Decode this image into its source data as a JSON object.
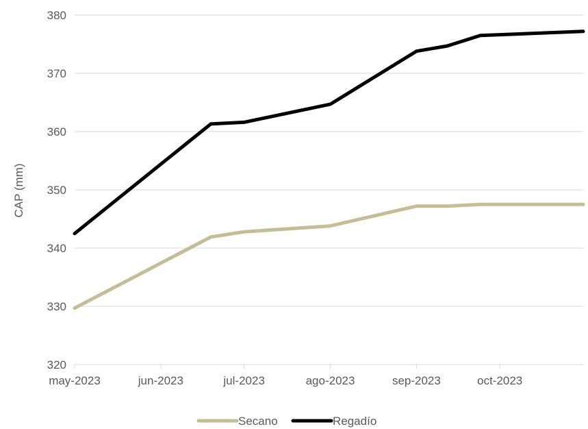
{
  "chart_data": {
    "type": "line",
    "title": "",
    "xlabel": "",
    "ylabel": "CAP (mm)",
    "ylim": [
      320,
      380
    ],
    "yticks": [
      320,
      330,
      340,
      350,
      360,
      370,
      380
    ],
    "xlim": [
      "2023-05-01",
      "2023-10-31"
    ],
    "xticks": [
      {
        "date": "2023-05-01",
        "label": "may-2023"
      },
      {
        "date": "2023-06-01",
        "label": "jun-2023"
      },
      {
        "date": "2023-07-01",
        "label": "jul-2023"
      },
      {
        "date": "2023-08-01",
        "label": "ago-2023"
      },
      {
        "date": "2023-09-01",
        "label": "sep-2023"
      },
      {
        "date": "2023-10-01",
        "label": "oct-2023"
      }
    ],
    "grid": "horizontal",
    "legend": "bottom",
    "series": [
      {
        "name": "Secano",
        "color": "#C4BD97",
        "points": [
          {
            "x": "2023-05-01",
            "y": 329.7
          },
          {
            "x": "2023-06-19",
            "y": 341.9
          },
          {
            "x": "2023-07-01",
            "y": 342.8
          },
          {
            "x": "2023-08-01",
            "y": 343.8
          },
          {
            "x": "2023-09-01",
            "y": 347.2
          },
          {
            "x": "2023-09-12",
            "y": 347.2
          },
          {
            "x": "2023-09-24",
            "y": 347.5
          },
          {
            "x": "2023-10-31",
            "y": 347.5
          }
        ]
      },
      {
        "name": "Regadío",
        "color": "#000000",
        "points": [
          {
            "x": "2023-05-01",
            "y": 342.5
          },
          {
            "x": "2023-06-19",
            "y": 361.3
          },
          {
            "x": "2023-07-01",
            "y": 361.6
          },
          {
            "x": "2023-08-01",
            "y": 364.7
          },
          {
            "x": "2023-09-01",
            "y": 373.8
          },
          {
            "x": "2023-09-12",
            "y": 374.7
          },
          {
            "x": "2023-09-24",
            "y": 376.5
          },
          {
            "x": "2023-10-31",
            "y": 377.2
          }
        ]
      }
    ]
  }
}
